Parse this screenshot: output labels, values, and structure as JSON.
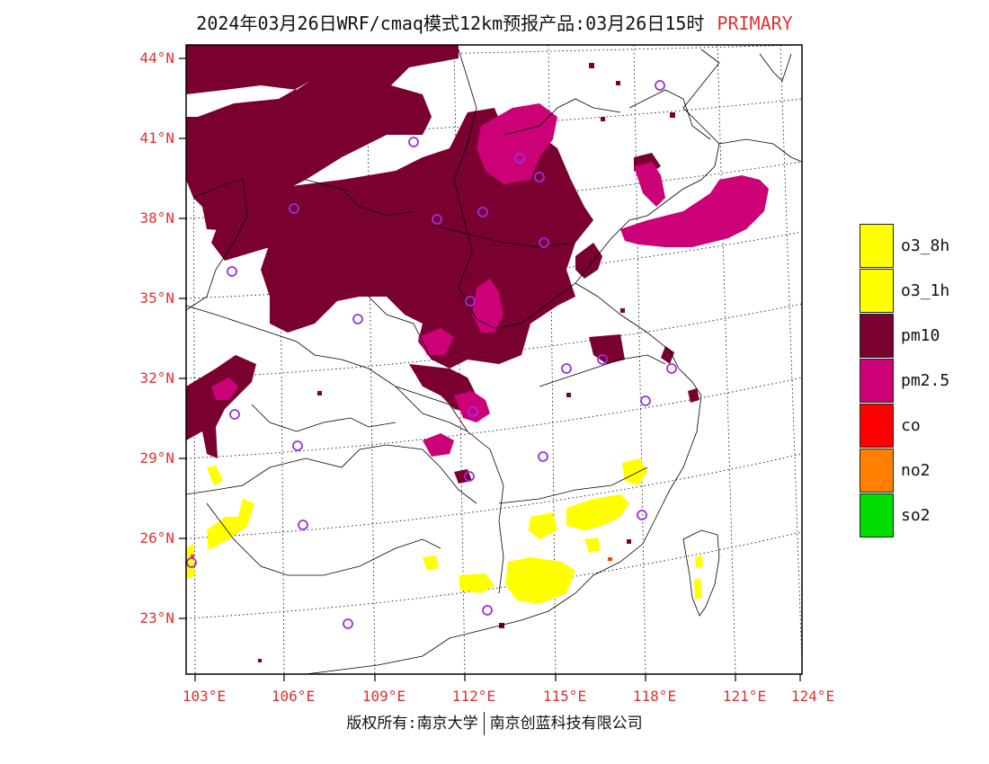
{
  "header": {
    "title": "2024年03月26日WRF/cmaq模式12km预报产品:03月26日15时",
    "tag": "PRIMARY"
  },
  "axes": {
    "lat_labels": [
      "44°N",
      "41°N",
      "38°N",
      "35°N",
      "32°N",
      "29°N",
      "26°N",
      "23°N"
    ],
    "lon_labels": [
      "103°E",
      "106°E",
      "109°E",
      "112°E",
      "115°E",
      "118°E",
      "121°E",
      "124°E"
    ]
  },
  "legend": {
    "items": [
      {
        "label": "o3_8h",
        "color": "#ffff00"
      },
      {
        "label": "o3_1h",
        "color": "#ffff00"
      },
      {
        "label": "pm10",
        "color": "#7a0030"
      },
      {
        "label": "pm2.5",
        "color": "#cc0077"
      },
      {
        "label": "co",
        "color": "#ff0000"
      },
      {
        "label": "no2",
        "color": "#ff7f00"
      },
      {
        "label": "so2",
        "color": "#00dd00"
      }
    ]
  },
  "footer": {
    "left": "版权所有:南京大学",
    "right": "南京创蓝科技有限公司"
  },
  "map": {
    "frame_color": "#000000",
    "station_marker_color": "#9a30e0"
  }
}
